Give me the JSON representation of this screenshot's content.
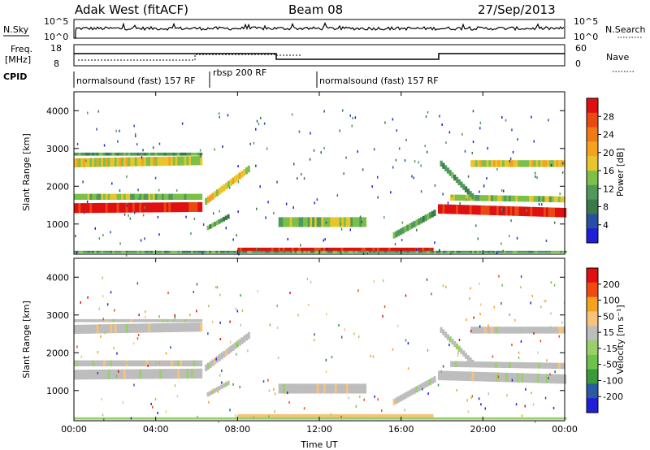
{
  "header": {
    "station": "Adak West (fitACF)",
    "beam": "Beam 08",
    "date": "27/Sep/2013"
  },
  "top_panels": {
    "nsky_label": "N.Sky",
    "nsky_ticks": [
      "10^5",
      "10^0"
    ],
    "nsearch_label": "N.Search",
    "freq_label": "Freq.",
    "freq_unit": "[MHz]",
    "freq_ticks": [
      "18",
      "8"
    ],
    "nave_label": "Nave",
    "nave_ticks": [
      "60",
      "0"
    ],
    "cpid_label": "CPID",
    "cpid_modes": [
      "normalsound (fast) 157 RF",
      "rbsp 200 RF",
      "normalsound (fast) 157 RF"
    ]
  },
  "colors": {
    "power_scale": [
      "#1f1fd8",
      "#2a4fa0",
      "#3a7a4a",
      "#4f9a5a",
      "#7cc04a",
      "#e8c52a",
      "#f5a21e",
      "#f07a16",
      "#e84a12",
      "#e01010"
    ],
    "velocity_scale": [
      "#e01010",
      "#f04a12",
      "#f5a21e",
      "#f7c27a",
      "#bdbdbd",
      "#9ad06a",
      "#6cc24a",
      "#3a9a3a",
      "#2a5aa0",
      "#1f1fd8"
    ]
  },
  "chart_data": [
    {
      "type": "heatmap",
      "name": "power",
      "xlabel": "",
      "ylabel": "Slant Range [km]",
      "x_ticks": [
        "00:00",
        "04:00",
        "08:00",
        "12:00",
        "16:00",
        "20:00",
        "00:00"
      ],
      "y_ticks": [
        "1000",
        "2000",
        "3000",
        "4000"
      ],
      "ylim": [
        200,
        4500
      ],
      "xlim_hours": [
        0,
        24
      ],
      "colorbar_label": "Power [dB]",
      "colorbar_ticks": [
        "4",
        "8",
        "12",
        "16",
        "20",
        "24",
        "28"
      ]
    },
    {
      "type": "heatmap",
      "name": "velocity",
      "xlabel": "Time UT",
      "ylabel": "Slant Range [km]",
      "x_ticks": [
        "00:00",
        "04:00",
        "08:00",
        "12:00",
        "16:00",
        "20:00",
        "00:00"
      ],
      "y_ticks": [
        "1000",
        "2000",
        "3000",
        "4000"
      ],
      "ylim": [
        200,
        4500
      ],
      "xlim_hours": [
        0,
        24
      ],
      "colorbar_label": "Velocity [m s⁻¹]",
      "colorbar_ticks": [
        "200",
        "100",
        "50",
        "15",
        "-15",
        "-50",
        "-100",
        "-200"
      ]
    }
  ]
}
